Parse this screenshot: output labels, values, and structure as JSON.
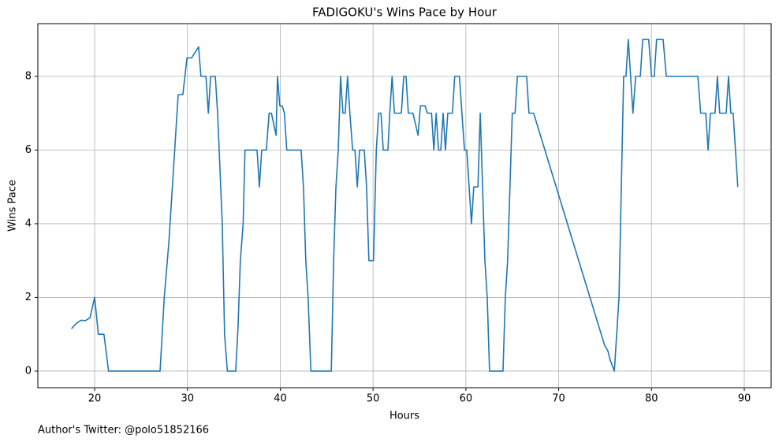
{
  "chart_data": {
    "type": "line",
    "title": "FADIGOKU's Wins Pace by Hour",
    "x_label": "Hours",
    "y_label": "Wins Pace",
    "footnote": "Author's Twitter: @polo51852166",
    "x": [
      17.5,
      18.05,
      18.55,
      19.0,
      19.5,
      20.0,
      20.4,
      21.0,
      21.5,
      27.05,
      27.5,
      28.0,
      28.5,
      29.0,
      29.5,
      29.95,
      30.45,
      31.2,
      31.45,
      32.0,
      32.25,
      32.5,
      33.0,
      33.25,
      33.75,
      34.0,
      34.3,
      35.2,
      35.45,
      35.7,
      36.0,
      36.2,
      37.5,
      37.75,
      38.0,
      38.5,
      38.8,
      39.05,
      39.55,
      39.7,
      39.95,
      40.2,
      40.45,
      40.7,
      42.25,
      42.5,
      42.75,
      43.0,
      43.3,
      45.5,
      45.75,
      46.0,
      46.25,
      46.5,
      46.75,
      47.0,
      47.25,
      47.5,
      47.8,
      48.05,
      48.3,
      48.55,
      49.05,
      49.3,
      49.55,
      50.05,
      50.35,
      50.6,
      50.85,
      51.1,
      51.6,
      51.8,
      52.05,
      52.3,
      53.05,
      53.3,
      53.55,
      53.8,
      54.3,
      54.85,
      55.1,
      55.6,
      55.85,
      56.3,
      56.55,
      56.8,
      57.05,
      57.3,
      57.55,
      57.8,
      58.05,
      58.55,
      58.8,
      59.3,
      59.85,
      60.1,
      60.35,
      60.6,
      60.85,
      61.3,
      61.55,
      61.8,
      62.05,
      62.3,
      62.55,
      64.0,
      64.25,
      64.5,
      64.75,
      65.0,
      65.3,
      65.55,
      66.55,
      66.8,
      67.3,
      74.95,
      75.3,
      75.55,
      76.0,
      76.25,
      76.5,
      76.75,
      77.0,
      77.25,
      77.5,
      77.75,
      78.0,
      78.3,
      78.8,
      79.05,
      79.7,
      80.0,
      80.3,
      80.55,
      81.25,
      81.6,
      85.0,
      85.3,
      85.85,
      86.1,
      86.35,
      86.85,
      87.1,
      87.35,
      88.05,
      88.3,
      88.55,
      88.8,
      89.3
    ],
    "values": [
      1.15,
      1.3,
      1.38,
      1.37,
      1.45,
      2.0,
      1.0,
      1.0,
      0,
      0,
      2,
      3.5,
      5.5,
      7.5,
      7.5,
      8.5,
      8.5,
      8.8,
      8,
      8,
      7,
      8,
      8,
      7,
      4,
      1,
      0,
      0,
      1.2,
      3,
      4,
      6,
      6,
      5,
      6,
      6,
      7,
      7,
      6.4,
      8,
      7.2,
      7.2,
      7,
      6,
      6,
      5,
      3,
      2,
      0,
      0,
      3,
      5,
      6,
      8,
      7,
      7,
      8,
      7,
      6,
      6,
      5,
      6,
      6,
      5,
      3,
      3,
      6,
      7,
      7,
      6,
      6,
      7,
      8,
      7,
      7,
      8,
      8,
      7,
      7,
      6.4,
      7.2,
      7.2,
      7,
      7,
      6,
      7,
      6,
      6,
      7,
      6,
      7,
      7,
      8,
      8,
      6,
      6,
      5,
      4,
      5,
      5,
      7,
      5,
      3,
      2,
      0,
      0,
      2,
      3,
      5,
      7,
      7,
      8,
      8,
      7,
      7,
      0.7,
      0.55,
      0.3,
      0,
      1,
      2,
      5,
      8,
      8,
      9,
      8,
      7,
      8,
      8,
      9,
      9,
      8,
      8,
      9,
      9,
      8,
      8,
      7,
      7,
      6,
      7,
      7,
      8,
      7,
      7,
      8,
      7,
      7,
      5
    ],
    "color": "#1f77b4",
    "xlim": [
      13.88,
      92.89
    ],
    "xticks": [
      20,
      30,
      40,
      50,
      60,
      70,
      80,
      90
    ],
    "ylim": [
      -0.45,
      9.43
    ],
    "yticks": [
      0,
      2,
      4,
      6,
      8
    ],
    "grid": true
  }
}
